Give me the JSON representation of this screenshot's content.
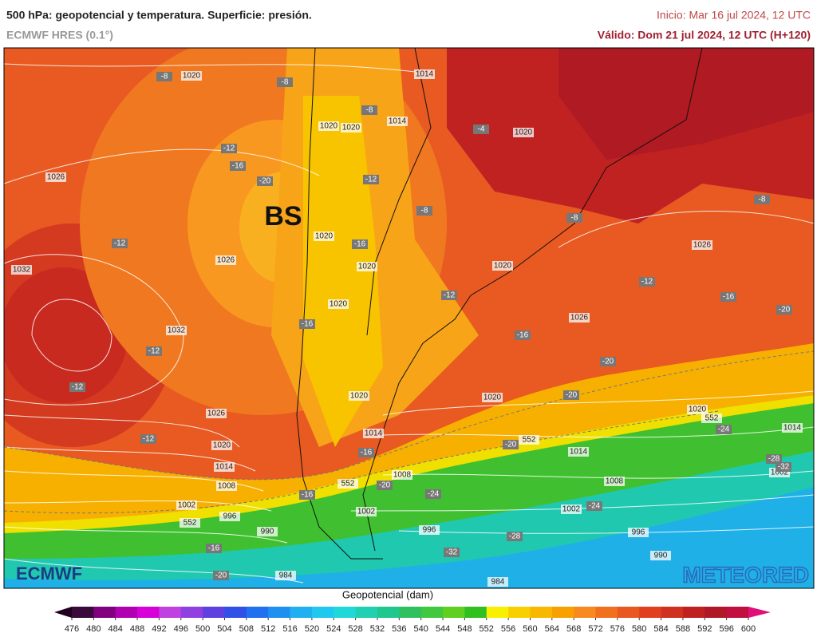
{
  "header": {
    "title": "500 hPa: geopotencial y temperatura. Superficie: presión.",
    "model": "ECMWF HRES (0.1°)",
    "init": "Inicio: Mar 16 jul 2024, 12 UTC",
    "valid": "Válido: Dom 21 jul 2024, 12 UTC (H+120)"
  },
  "map": {
    "center_label": "BS",
    "isobar_labels": [
      "1020",
      "1014",
      "1020",
      "1020",
      "1014",
      "1020",
      "1026",
      "1026",
      "1020",
      "1020",
      "1020",
      "1026",
      "1032",
      "1020",
      "1032",
      "1026",
      "1020",
      "1020",
      "1026",
      "1020",
      "1014",
      "1014",
      "1020",
      "1014",
      "1014",
      "1008",
      "1008",
      "1008",
      "1002",
      "1002",
      "1002",
      "1002",
      "996",
      "990",
      "996",
      "996",
      "990",
      "984",
      "984",
      "552",
      "552",
      "552",
      "552"
    ],
    "temperature_labels": [
      "-8",
      "-8",
      "-8",
      "-4",
      "-12",
      "-16",
      "-20",
      "-12",
      "-8",
      "-8",
      "-8",
      "-12",
      "-16",
      "-12",
      "-12",
      "-16",
      "-20",
      "-16",
      "-16",
      "-12",
      "-20",
      "-12",
      "-20",
      "-12",
      "-20",
      "-24",
      "-16",
      "-28",
      "-32",
      "-20",
      "-24",
      "-16",
      "-24",
      "-28",
      "-16",
      "-32",
      "-20"
    ]
  },
  "colorbar": {
    "label": "Geopotencial (dam)",
    "ticks": [
      476,
      480,
      484,
      488,
      492,
      496,
      500,
      504,
      508,
      512,
      516,
      520,
      524,
      528,
      532,
      536,
      540,
      544,
      548,
      552,
      556,
      560,
      564,
      568,
      572,
      576,
      580,
      584,
      588,
      592,
      596,
      600
    ],
    "colors": [
      "#3a0a3a",
      "#800080",
      "#b000b0",
      "#d800d8",
      "#c040e0",
      "#9040e0",
      "#6040e0",
      "#3050e8",
      "#2070f0",
      "#2090f0",
      "#20b0f0",
      "#20c8f0",
      "#20d8d8",
      "#20d0b0",
      "#20c890",
      "#30c060",
      "#40c840",
      "#60d020",
      "#30c020",
      "#f8f000",
      "#f8d000",
      "#f8b800",
      "#f8a000",
      "#f88820",
      "#f07020",
      "#e85820",
      "#e04020",
      "#d03020",
      "#c02020",
      "#b01828",
      "#c01040"
    ],
    "under_color": "#200020",
    "over_color": "#e0107a"
  },
  "logos": {
    "left": "ECMWF",
    "right": "METEORED"
  }
}
